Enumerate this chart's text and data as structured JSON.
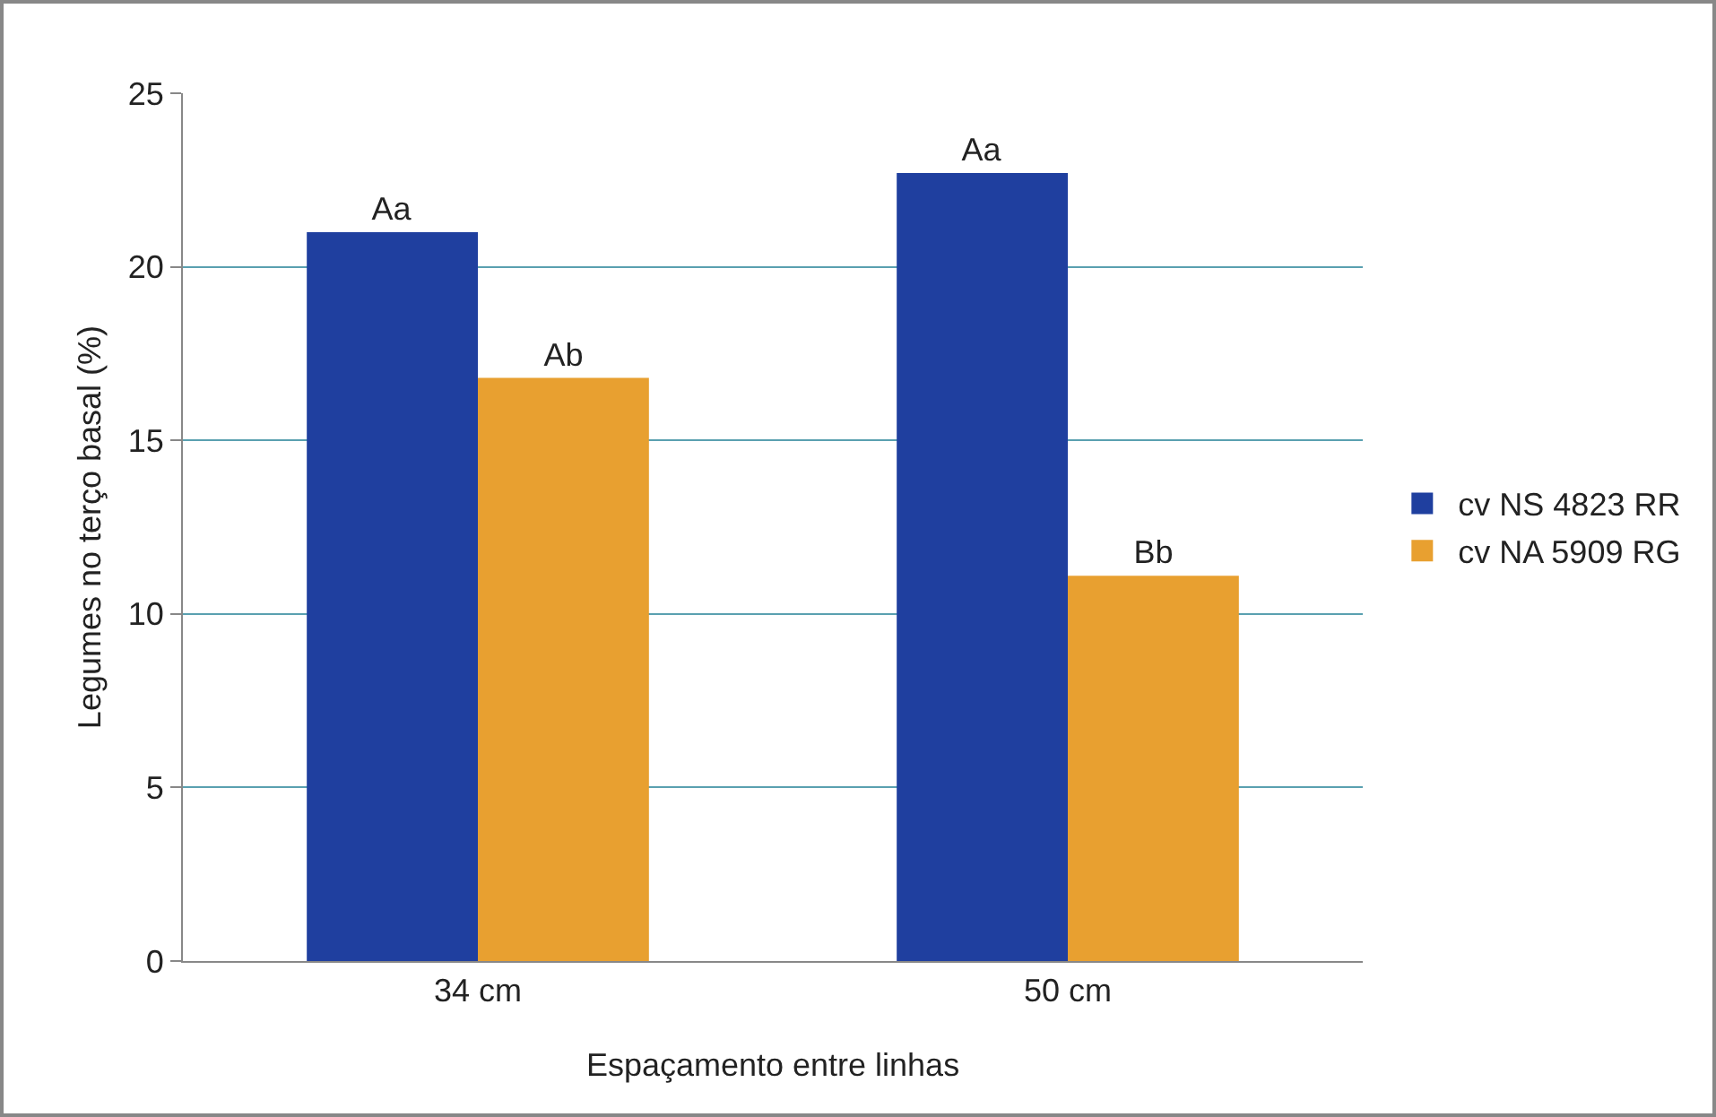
{
  "chart_data": {
    "type": "bar",
    "xlabel": "Espaçamento entre linhas",
    "ylabel": "Legumes no terço basal (%)",
    "categories": [
      "34 cm",
      "50 cm"
    ],
    "series": [
      {
        "name": "cv NS 4823 RR",
        "color": "#1f3f9f",
        "values": [
          21.0,
          22.7
        ],
        "value_labels": [
          "Aa",
          "Aa"
        ]
      },
      {
        "name": "cv NA 5909 RG",
        "color": "#e8a030",
        "values": [
          16.8,
          11.1
        ],
        "value_labels": [
          "Ab",
          "Bb"
        ]
      }
    ],
    "ylim": [
      0,
      25
    ],
    "yticks": [
      0,
      5,
      10,
      15,
      20,
      25
    ],
    "grid": "y",
    "legend": "right"
  }
}
